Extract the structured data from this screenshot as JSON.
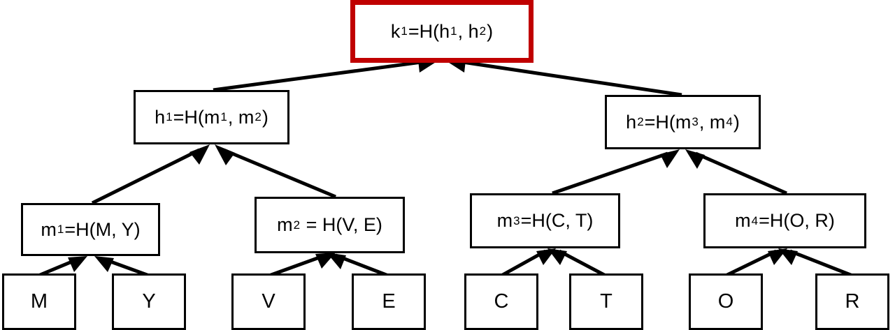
{
  "root": {
    "label": "k",
    "sub1": "1",
    "eq": "=H(h",
    "sub2": "1",
    "mid": ", h",
    "sub3": "2",
    "end": ")"
  },
  "h1": {
    "a": "h",
    "s1": "1",
    "b": "=H(m",
    "s2": "1",
    "c": ", m",
    "s3": "2",
    "d": ")"
  },
  "h2": {
    "a": "h",
    "s1": "2",
    "b": "=H(m",
    "s2": "3",
    "c": ", m",
    "s3": "4",
    "d": ")"
  },
  "m1": {
    "a": "m",
    "s1": "1",
    "b": "=H(M, Y)"
  },
  "m2": {
    "a": "m",
    "s1": "2",
    "b": " = H(V, E)"
  },
  "m3": {
    "a": "m",
    "s1": "3",
    "b": "=H(C, T)"
  },
  "m4": {
    "a": "m",
    "s1": "4",
    "b": "=H(O, R)"
  },
  "leaves": [
    "M",
    "Y",
    "V",
    "E",
    "C",
    "T",
    "O",
    "R"
  ],
  "colors": {
    "root_border": "#c00000",
    "line": "#000000"
  }
}
